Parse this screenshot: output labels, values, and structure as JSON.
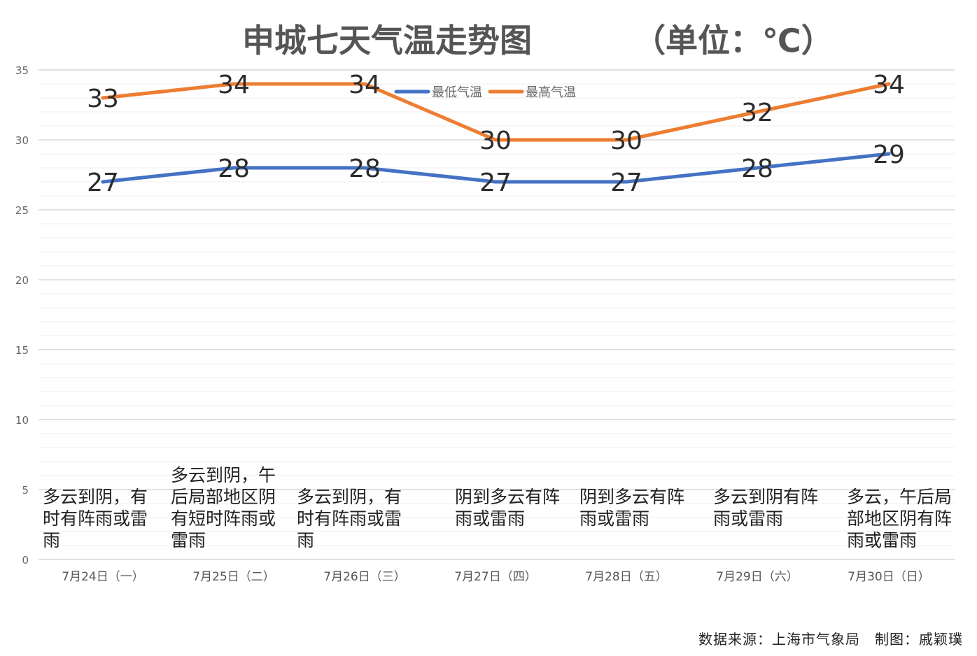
{
  "chart_data": {
    "type": "line",
    "title": "申城七天气温走势图",
    "subtitle": "（单位：℃）",
    "categories": [
      "7月24日（一）",
      "7月25日（二）",
      "7月26日（三）",
      "7月27日（四）",
      "7月28日（五）",
      "7月29日（六）",
      "7月30日（日）"
    ],
    "series": [
      {
        "name": "最低气温",
        "color": "#4472C4",
        "values": [
          27,
          28,
          28,
          27,
          27,
          28,
          29
        ]
      },
      {
        "name": "最高气温",
        "color": "#ED7D31",
        "values": [
          33,
          34,
          34,
          30,
          30,
          32,
          34
        ]
      }
    ],
    "ylim": [
      0,
      35
    ],
    "yticks": [
      0,
      5,
      10,
      15,
      20,
      25,
      30,
      35
    ],
    "grid": true,
    "legend_position": "top-center",
    "weather": [
      "多云到阴，有时有阵雨或雷雨",
      "多云到阴，午后局部地区阴有短时阵雨或雷雨",
      "多云到阴，有时有阵雨或雷雨",
      "阴到多云有阵雨或雷雨",
      "阴到多云有阵雨或雷雨",
      "多云到阴有阵雨或雷雨",
      "多云，午后局部地区阴有阵雨或雷雨"
    ]
  },
  "footer": {
    "source": "数据来源：上海市气象局　制图：戚颖璞"
  }
}
